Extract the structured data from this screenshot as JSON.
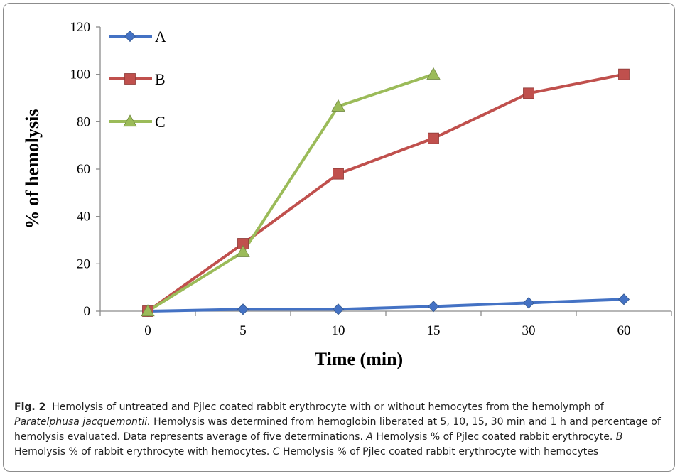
{
  "chart_data": {
    "type": "line",
    "categories": [
      "0",
      "5",
      "10",
      "15",
      "30",
      "60"
    ],
    "xlabel": "Time (min)",
    "ylabel": "% of hemolysis",
    "ylim": [
      0,
      120
    ],
    "yticks": [
      0,
      20,
      40,
      60,
      80,
      100,
      120
    ],
    "grid": false,
    "legend": "top-left",
    "series": [
      {
        "name": "A",
        "color": "#4472C4",
        "marker": "diamond",
        "values": [
          0,
          0.8,
          0.8,
          2,
          3.5,
          5
        ]
      },
      {
        "name": "B",
        "color": "#C0504D",
        "marker": "square",
        "values": [
          0,
          28.5,
          58,
          73,
          92,
          100
        ]
      },
      {
        "name": "C",
        "color": "#9BBB59",
        "marker": "triangle",
        "values": [
          0,
          25,
          86.5,
          100,
          null,
          null
        ]
      }
    ]
  },
  "caption": {
    "label": "Fig. 2",
    "t1": "Hemolysis of untreated and Pjlec coated rabbit erythrocyte with or without hemocytes from the hemolymph of ",
    "species": "Paratelphusa jacquemontii.",
    "t2": " Hemolysis was determined from hemoglobin liberated at 5, 10, 15, 30 min and 1 h and percentage of hemolysis evaluated. Data represents average of five determinations. ",
    "a": "A",
    "ta": " Hemolysis % of Pjlec coated rabbit erythrocyte. ",
    "b": "B",
    "tb": " Hemolysis % of rabbit erythrocyte with hemocytes. ",
    "c": "C",
    "tc": " Hemolysis % of Pjlec coated rabbit erythrocyte with hemocytes"
  }
}
